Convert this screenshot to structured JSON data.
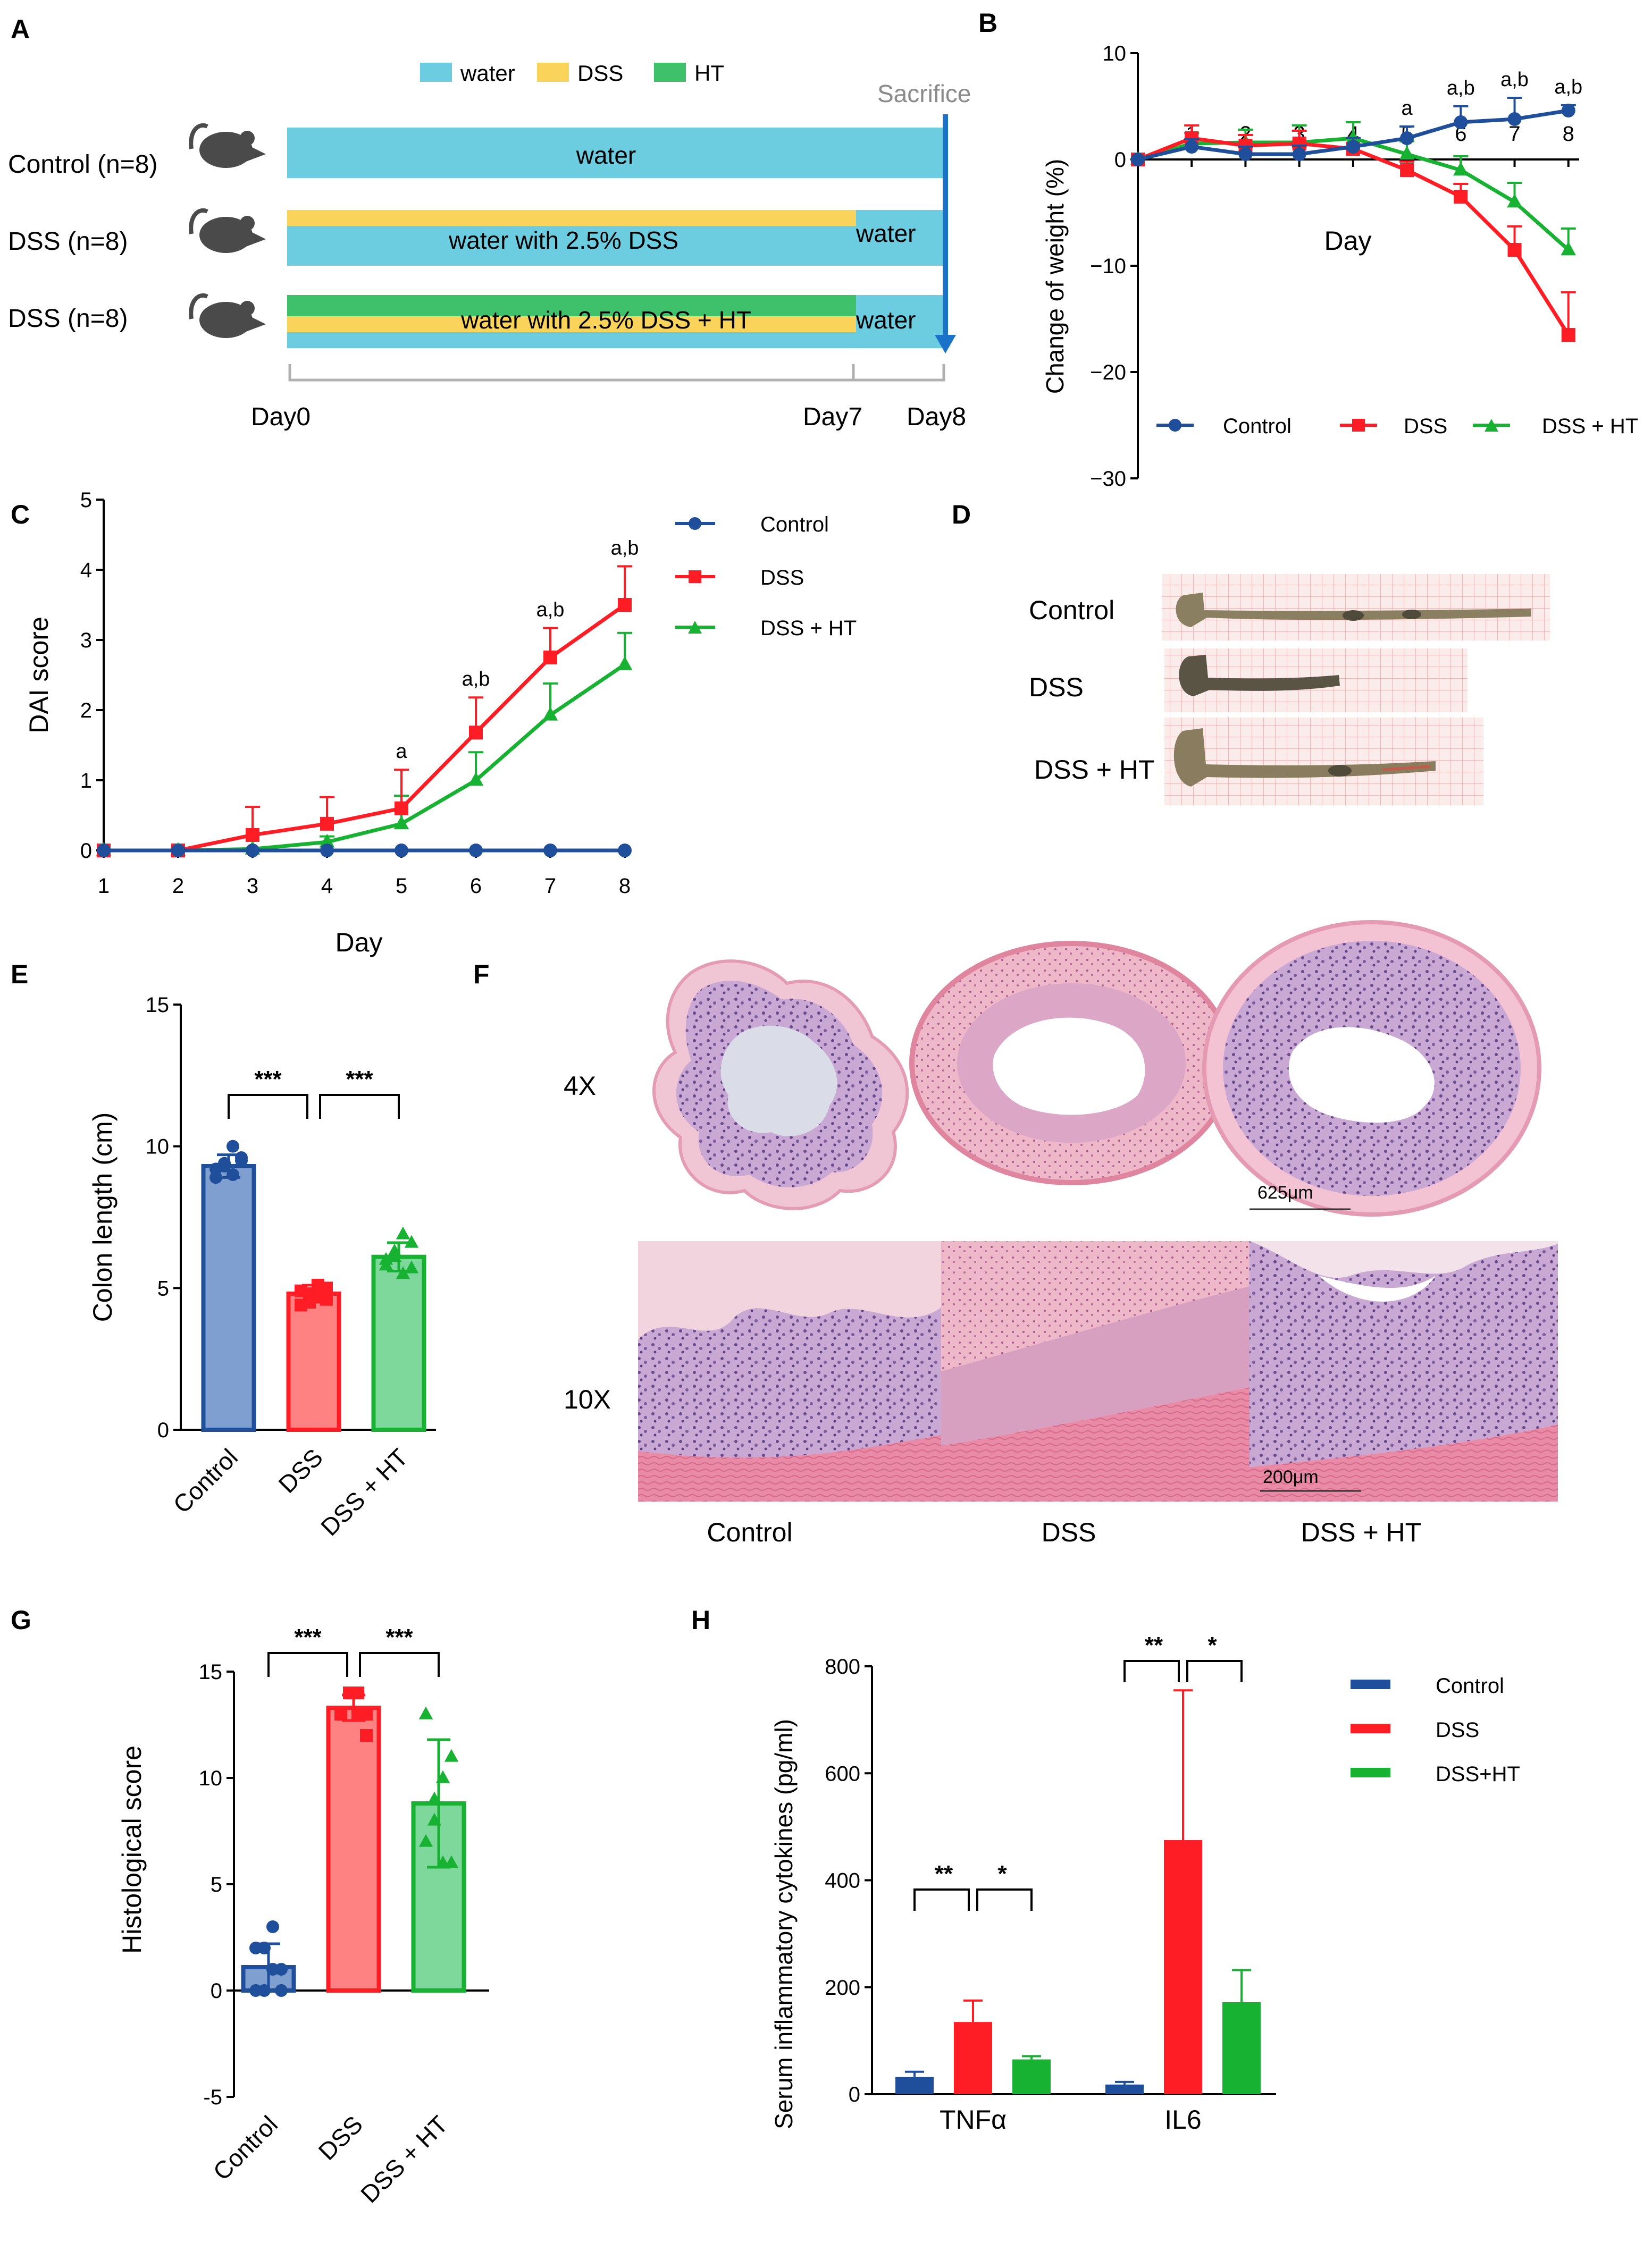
{
  "panels": {
    "A": "A",
    "B": "B",
    "C": "C",
    "D": "D",
    "E": "E",
    "F": "F",
    "G": "G",
    "H": "H"
  },
  "colors": {
    "control": "#1f4e9b",
    "dss": "#ff1d25",
    "ht": "#18b232",
    "water": "#6ccde0",
    "dss_bar": "#f9d35a",
    "ht_bar": "#3fc06b",
    "control_fill": "#7f9fd0",
    "dss_fill": "#ff8282",
    "ht_fill": "#7ed89c",
    "arrow": "#1b72c6"
  },
  "panel_a": {
    "legend": [
      "water",
      "DSS",
      "HT"
    ],
    "groups": [
      "Control (n=8)",
      "DSS (n=8)",
      "DSS (n=8)"
    ],
    "bar_texts": [
      "water",
      "water with 2.5% DSS",
      "water",
      "water with 2.5% DSS + HT",
      "water"
    ],
    "sacrifice": "Sacrifice",
    "days": [
      "Day0",
      "Day7",
      "Day8"
    ]
  },
  "panel_d": {
    "labels": [
      "Control",
      "DSS",
      "DSS + HT"
    ],
    "icons": [
      "colon-specimen-icon",
      "colon-specimen-icon",
      "colon-specimen-icon"
    ]
  },
  "panel_f": {
    "row_labels": [
      "4X",
      "10X"
    ],
    "col_labels": [
      "Control",
      "DSS",
      "DSS + HT"
    ],
    "scale_bars": [
      "625μm",
      "200μm"
    ],
    "icons": [
      "colon-cross-section-icon",
      "colon-crypt-section-icon"
    ]
  },
  "chart_data": [
    {
      "panel": "B",
      "type": "line",
      "xlabel": "Day",
      "ylabel": "Change of weight (%)",
      "x": [
        0,
        1,
        2,
        3,
        4,
        5,
        6,
        7,
        8
      ],
      "xticks": [
        "1",
        "2",
        "3",
        "4",
        "5",
        "6",
        "7",
        "8"
      ],
      "ylim": [
        -30,
        10
      ],
      "yticks": [
        "10",
        "0",
        "−10",
        "−20",
        "−30"
      ],
      "series": [
        {
          "name": "Control",
          "values": [
            0,
            1.2,
            0.5,
            0.5,
            1.2,
            2.0,
            3.5,
            3.8,
            4.6
          ],
          "err": [
            0,
            0.7,
            0.7,
            0.8,
            0.8,
            1.1,
            1.5,
            2.0,
            0.5
          ]
        },
        {
          "name": "DSS",
          "values": [
            0,
            2.0,
            1.3,
            1.5,
            1.0,
            -1.0,
            -3.5,
            -8.5,
            -16.5
          ],
          "err": [
            0,
            1.2,
            1.0,
            1.2,
            1.0,
            0.8,
            1.2,
            2.2,
            4.0
          ]
        },
        {
          "name": "DSS + HT",
          "values": [
            0,
            1.5,
            1.6,
            1.6,
            2.0,
            0.5,
            -1.0,
            -4.0,
            -8.5
          ],
          "err": [
            0,
            1.0,
            1.2,
            1.6,
            1.5,
            1.2,
            1.3,
            1.8,
            2.0
          ]
        }
      ],
      "annotations": [
        {
          "x": 5,
          "text": "a"
        },
        {
          "x": 6,
          "text": "a,b"
        },
        {
          "x": 7,
          "text": "a,b"
        },
        {
          "x": 8,
          "text": "a,b"
        }
      ]
    },
    {
      "panel": "C",
      "type": "line",
      "xlabel": "Day",
      "ylabel": "DAI score",
      "x": [
        1,
        2,
        3,
        4,
        5,
        6,
        7,
        8
      ],
      "xticks": [
        "1",
        "2",
        "3",
        "4",
        "5",
        "6",
        "7",
        "8"
      ],
      "ylim": [
        0,
        5
      ],
      "yticks": [
        "0",
        "1",
        "2",
        "3",
        "4",
        "5"
      ],
      "series": [
        {
          "name": "Control",
          "values": [
            0,
            0,
            0,
            0,
            0,
            0,
            0,
            0
          ],
          "err": [
            0,
            0,
            0,
            0,
            0,
            0,
            0,
            0
          ]
        },
        {
          "name": "DSS",
          "values": [
            0,
            0,
            0.22,
            0.38,
            0.6,
            1.68,
            2.75,
            3.5
          ],
          "err": [
            0,
            0,
            0.4,
            0.38,
            0.55,
            0.5,
            0.42,
            0.55
          ]
        },
        {
          "name": "DSS + HT",
          "values": [
            0,
            0,
            0.02,
            0.12,
            0.38,
            1.0,
            1.93,
            2.65
          ],
          "err": [
            0,
            0,
            0,
            0.08,
            0.4,
            0.4,
            0.45,
            0.45
          ]
        }
      ],
      "annotations": [
        {
          "x": 5,
          "text": "a"
        },
        {
          "x": 6,
          "text": "a,b"
        },
        {
          "x": 7,
          "text": "a,b"
        },
        {
          "x": 8,
          "text": "a,b"
        }
      ]
    },
    {
      "panel": "E",
      "type": "bar",
      "ylabel": "Colon length (cm)",
      "categories": [
        "Control",
        "DSS",
        "DSS + HT"
      ],
      "values": [
        9.3,
        4.8,
        6.1
      ],
      "err": [
        0.4,
        0.3,
        0.5
      ],
      "ylim": [
        0,
        15
      ],
      "yticks": [
        "0",
        "5",
        "10",
        "15"
      ],
      "points": [
        [
          9.2,
          9.4,
          9.0,
          9.6,
          8.9,
          9.3,
          10.0,
          9.5
        ],
        [
          4.9,
          4.5,
          4.7,
          5.0,
          4.4,
          4.8,
          5.1,
          4.6
        ],
        [
          6.0,
          6.3,
          5.5,
          6.6,
          5.8,
          6.1,
          6.9,
          5.7
        ]
      ],
      "markers": [
        "circle",
        "square",
        "triangle"
      ],
      "comparisons": [
        "***",
        "***"
      ]
    },
    {
      "panel": "G",
      "type": "bar",
      "ylabel": "Histological score",
      "categories": [
        "Control",
        "DSS",
        "DSS + HT"
      ],
      "values": [
        1.1,
        13.3,
        8.8
      ],
      "err": [
        1.1,
        0.6,
        3.0
      ],
      "ylim": [
        -5,
        15
      ],
      "yticks": [
        "-5",
        "0",
        "5",
        "10",
        "15"
      ],
      "points": [
        [
          0,
          0,
          1,
          1,
          2,
          2,
          3,
          0
        ],
        [
          13,
          14,
          14,
          12,
          13,
          14,
          13,
          13
        ],
        [
          7,
          9,
          6,
          11,
          13,
          8,
          10,
          6
        ]
      ],
      "markers": [
        "circle",
        "square",
        "triangle"
      ],
      "comparisons": [
        "***",
        "***"
      ]
    },
    {
      "panel": "H",
      "type": "bar",
      "ylabel": "Serum inflammatory cytokines (pg/ml)",
      "categories": [
        "TNFα",
        "IL6"
      ],
      "ylim": [
        0,
        800
      ],
      "yticks": [
        "0",
        "200",
        "400",
        "600",
        "800"
      ],
      "series": [
        {
          "name": "Control",
          "values": [
            32,
            18
          ],
          "err": [
            10,
            5
          ]
        },
        {
          "name": "DSS",
          "values": [
            135,
            475
          ],
          "err": [
            40,
            280
          ]
        },
        {
          "name": "DSS+HT",
          "values": [
            65,
            172
          ],
          "err": [
            6,
            60
          ]
        }
      ],
      "comparisons": [
        [
          "**",
          "*"
        ],
        [
          "**",
          "*"
        ]
      ]
    }
  ]
}
